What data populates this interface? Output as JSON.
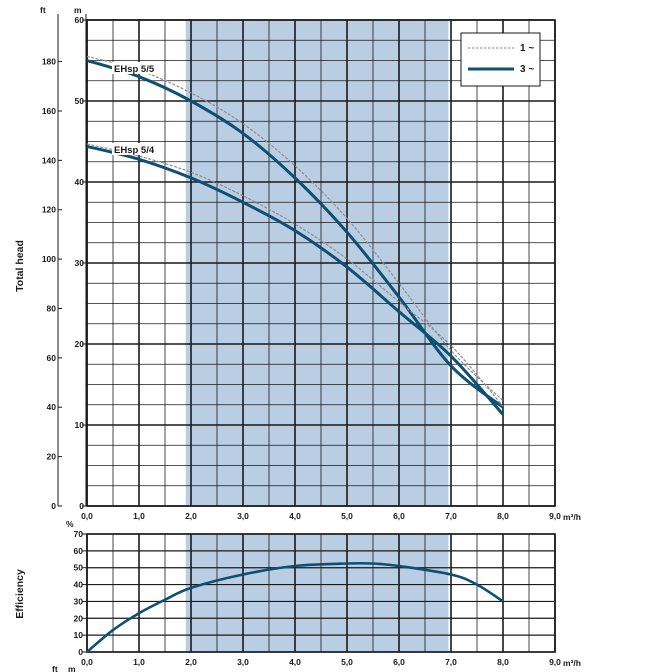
{
  "colors": {
    "band": "#b9cde3",
    "curve_3ph": "#0e4f74",
    "curve_1ph": "#8f8f8f",
    "grid": "#1a1a1a"
  },
  "chart_data": [
    {
      "type": "line",
      "xlabel": "m³/h",
      "ylabel": "Total head",
      "x_unit": "m³/h",
      "y_unit_left": "ft",
      "y_unit_right": "m",
      "xlim": [
        0,
        9
      ],
      "ylim": [
        0,
        60
      ],
      "x_ticks": [
        "0,0",
        "1,0",
        "2,0",
        "3,0",
        "4,0",
        "5,0",
        "6,0",
        "7,0",
        "8,0",
        "9,0"
      ],
      "m_ticks": [
        0,
        10,
        20,
        30,
        40,
        50,
        60
      ],
      "ft_ticks": [
        0,
        20,
        40,
        60,
        80,
        100,
        120,
        140,
        160,
        180
      ],
      "grid": true,
      "band": {
        "x_from": 1.9,
        "x_to": 6.95
      },
      "legend": {
        "position": "top-right",
        "entries": [
          {
            "label": "1 ~",
            "style": "dashed"
          },
          {
            "label": "3 ~",
            "style": "solid"
          }
        ]
      },
      "series": [
        {
          "name": "EHsp 5/5",
          "phase": "3 ~",
          "x": [
            0,
            1,
            2,
            3,
            4,
            5,
            6,
            7,
            8
          ],
          "y": [
            55.0,
            53.0,
            50.0,
            46.0,
            40.5,
            33.8,
            25.8,
            17.3,
            12.2
          ]
        },
        {
          "name": "EHsp 5/5",
          "phase": "1 ~",
          "x": [
            0,
            1,
            2,
            3,
            4,
            5,
            6,
            7,
            8
          ],
          "y": [
            55.5,
            53.8,
            51.0,
            47.2,
            42.0,
            35.5,
            27.5,
            19.2,
            13.0
          ]
        },
        {
          "name": "EHsp 5/4",
          "phase": "3 ~",
          "x": [
            0,
            1,
            2,
            3,
            4,
            5,
            6,
            7,
            8
          ],
          "y": [
            44.4,
            42.8,
            40.5,
            37.5,
            34.0,
            29.5,
            24.0,
            18.5,
            11.3
          ]
        },
        {
          "name": "EHsp 5/4",
          "phase": "1 ~",
          "x": [
            0,
            1,
            2,
            3,
            4,
            5,
            6,
            7,
            8
          ],
          "y": [
            44.7,
            43.2,
            41.2,
            38.3,
            34.8,
            30.5,
            25.2,
            19.8,
            12.3
          ]
        }
      ]
    },
    {
      "type": "line",
      "xlabel": "m³/h",
      "ylabel": "Efficiency",
      "y_unit": "%",
      "xlim": [
        0,
        9
      ],
      "ylim": [
        0,
        70
      ],
      "x_ticks": [
        "0,0",
        "1,0",
        "2,0",
        "3,0",
        "4,0",
        "5,0",
        "6,0",
        "7,0",
        "8,0",
        "9,0"
      ],
      "y_ticks": [
        0,
        10,
        20,
        30,
        40,
        50,
        60,
        70
      ],
      "grid": true,
      "band": {
        "x_from": 1.9,
        "x_to": 6.95
      },
      "series": [
        {
          "x": [
            0,
            0.5,
            1,
            1.5,
            2,
            3,
            4,
            5,
            5.5,
            6,
            7,
            7.5,
            8
          ],
          "y": [
            0,
            13,
            23,
            31,
            38,
            46,
            51,
            52.5,
            52.5,
            51,
            46,
            40,
            30
          ]
        }
      ]
    }
  ],
  "bottom_labels": {
    "ft": "ft",
    "m": "m"
  }
}
